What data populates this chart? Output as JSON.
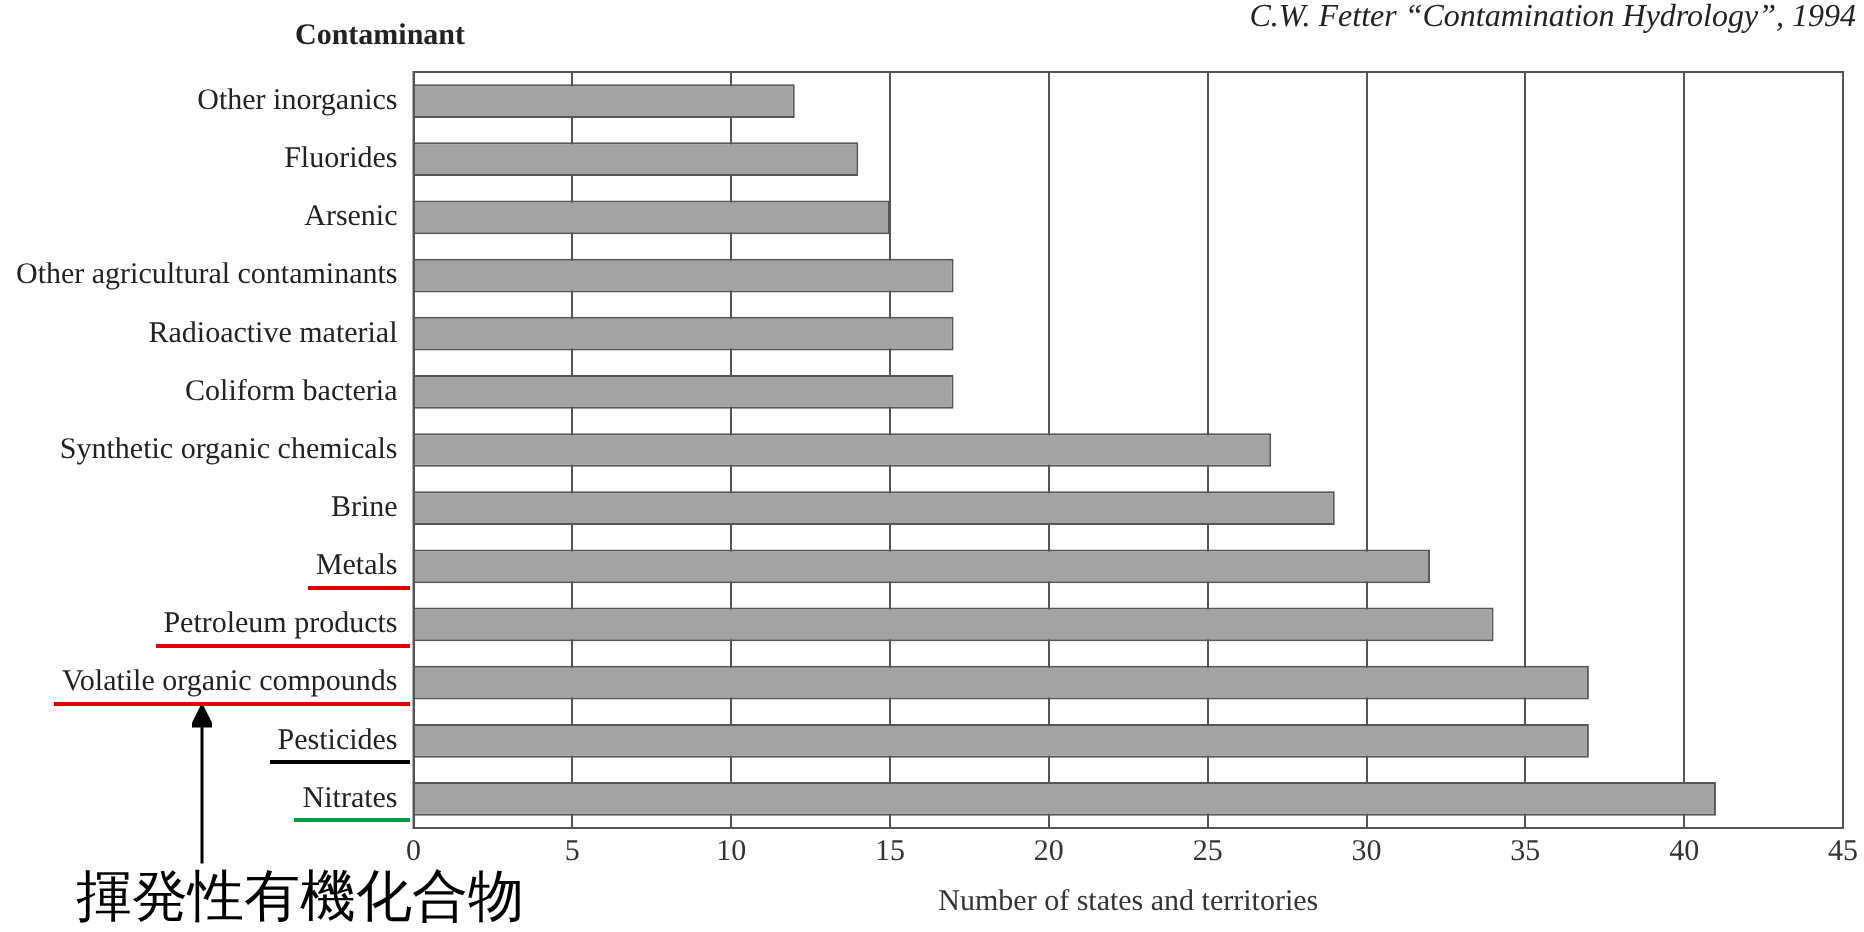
{
  "chart_data": {
    "type": "bar",
    "orientation": "horizontal",
    "ylabel": "Contaminant",
    "xlabel": "Number of states and territories",
    "categories": [
      "Other inorganics",
      "Fluorides",
      "Arsenic",
      "Other agricultural contaminants",
      "Radioactive material",
      "Coliform bacteria",
      "Synthetic organic chemicals",
      "Brine",
      "Metals",
      "Petroleum products",
      "Volatile organic compounds",
      "Pesticides",
      "Nitrates"
    ],
    "values": [
      12,
      14,
      15,
      17,
      17,
      17,
      27,
      29,
      32,
      34,
      37,
      37,
      41
    ],
    "color": "#a3a3a3",
    "xlim": [
      0,
      45
    ],
    "xticks": [
      0,
      5,
      10,
      15,
      20,
      25,
      30,
      35,
      40,
      45
    ],
    "grid": "x",
    "legend": false,
    "annotations": [
      "C.W. Fetter “Contamination Hydrology”, 1994",
      "揮発性有機化合物"
    ]
  }
}
